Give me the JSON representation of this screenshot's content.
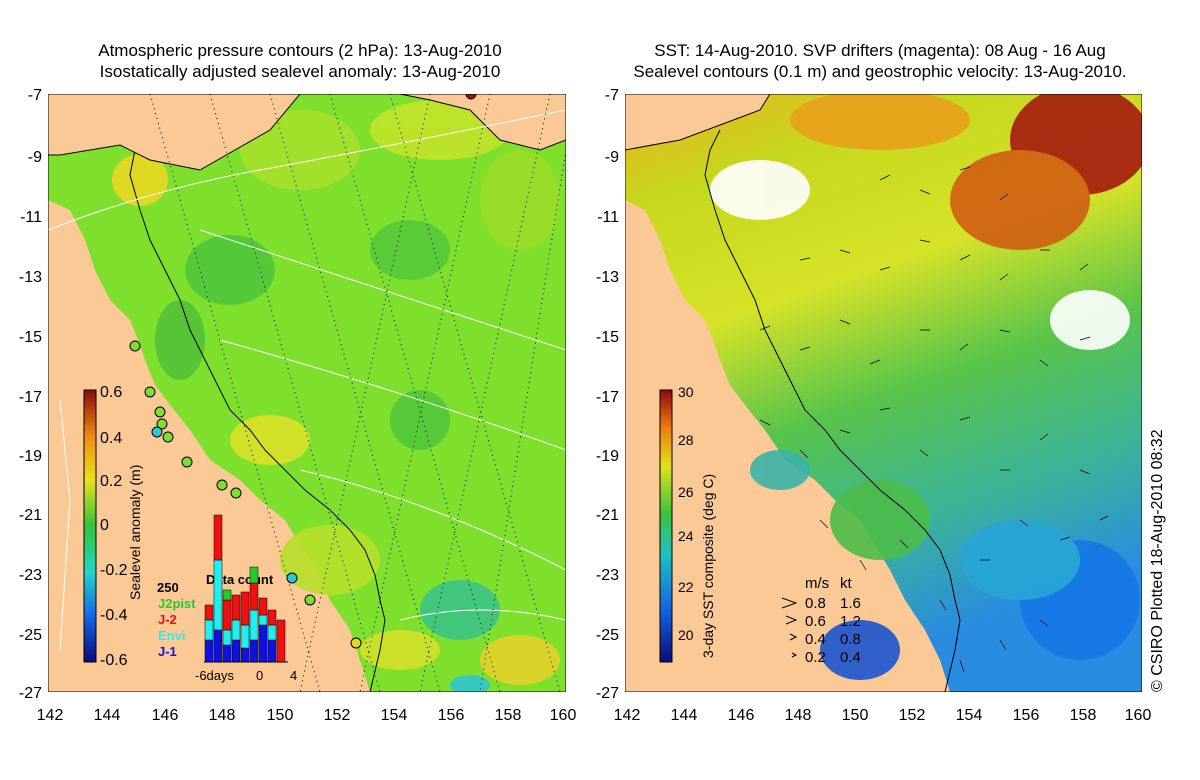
{
  "left_panel": {
    "title_line1": "Atmospheric pressure contours (2 hPa): 13-Aug-2010",
    "title_line2": "Isostatically adjusted sealevel anomaly: 13-Aug-2010",
    "colorbar": {
      "label": "Sealevel anomaly (m)",
      "ticks": [
        "0.6",
        "0.4",
        "0.2",
        "0",
        "-0.2",
        "-0.4",
        "-0.6"
      ]
    },
    "data_count": {
      "title": "Data count",
      "max_label": "250",
      "legend": [
        "J2pist",
        "J-2",
        "Envi",
        "J-1"
      ],
      "legend_colors": [
        "#22cc22",
        "#ee1111",
        "#22eeee",
        "#1111dd"
      ],
      "xticks": [
        "-6days",
        "0",
        "4"
      ]
    }
  },
  "right_panel": {
    "title_line1": "SST: 14-Aug-2010. SVP drifters (magenta): 08 Aug - 16 Aug",
    "title_line2": "Sealevel contours (0.1 m) and geostrophic velocity: 13-Aug-2010.",
    "colorbar": {
      "label": "3-day SST composite (deg C)",
      "ticks": [
        "30",
        "28",
        "26",
        "24",
        "22",
        "20"
      ]
    },
    "velocity_legend": {
      "header_ms": "m/s",
      "header_kt": "kt",
      "rows": [
        {
          "ms": "0.8",
          "kt": "1.6"
        },
        {
          "ms": "0.6",
          "kt": "1.2"
        },
        {
          "ms": "0.4",
          "kt": "0.8"
        },
        {
          "ms": "0.2",
          "kt": "0.4"
        }
      ]
    }
  },
  "axes": {
    "lat_ticks": [
      "-7",
      "-9",
      "-11",
      "-13",
      "-15",
      "-17",
      "-19",
      "-21",
      "-23",
      "-25",
      "-27"
    ],
    "lon_ticks": [
      "142",
      "144",
      "146",
      "148",
      "150",
      "152",
      "154",
      "156",
      "158",
      "160"
    ]
  },
  "credit": "© CSIRO Plotted 18-Aug-2010 08:32",
  "colors": {
    "land": "#fbc995",
    "ocean_green": "#7ee02c",
    "sst_green": "#4ec24a",
    "sst_yellow": "#d7e324",
    "sst_red": "#a41a10"
  }
}
